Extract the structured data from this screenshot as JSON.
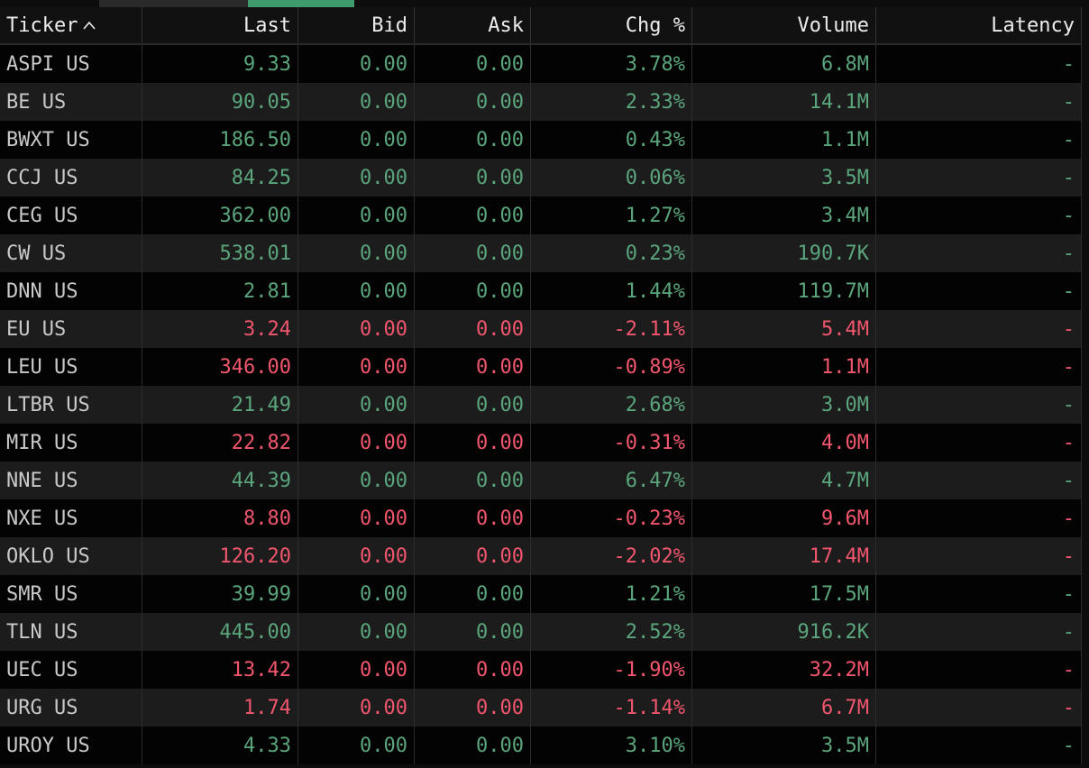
{
  "table": {
    "headers": [
      "Ticker",
      "Last",
      "Bid",
      "Ask",
      "Chg %",
      "Volume",
      "Latency"
    ],
    "colors": {
      "up": "#5ba57d",
      "down": "#f0566d",
      "ticker": "#c9c9c9",
      "header": "#ededed"
    },
    "rows": [
      [
        "ASPI US",
        "9.33",
        "0.00",
        "0.00",
        "3.78%",
        "6.8M",
        "-"
      ],
      [
        "BE US",
        "90.05",
        "0.00",
        "0.00",
        "2.33%",
        "14.1M",
        "-"
      ],
      [
        "BWXT US",
        "186.50",
        "0.00",
        "0.00",
        "0.43%",
        "1.1M",
        "-"
      ],
      [
        "CCJ US",
        "84.25",
        "0.00",
        "0.00",
        "0.06%",
        "3.5M",
        "-"
      ],
      [
        "CEG US",
        "362.00",
        "0.00",
        "0.00",
        "1.27%",
        "3.4M",
        "-"
      ],
      [
        "CW US",
        "538.01",
        "0.00",
        "0.00",
        "0.23%",
        "190.7K",
        "-"
      ],
      [
        "DNN US",
        "2.81",
        "0.00",
        "0.00",
        "1.44%",
        "119.7M",
        "-"
      ],
      [
        "EU US",
        "3.24",
        "0.00",
        "0.00",
        "-2.11%",
        "5.4M",
        "-"
      ],
      [
        "LEU US",
        "346.00",
        "0.00",
        "0.00",
        "-0.89%",
        "1.1M",
        "-"
      ],
      [
        "LTBR US",
        "21.49",
        "0.00",
        "0.00",
        "2.68%",
        "3.0M",
        "-"
      ],
      [
        "MIR US",
        "22.82",
        "0.00",
        "0.00",
        "-0.31%",
        "4.0M",
        "-"
      ],
      [
        "NNE US",
        "44.39",
        "0.00",
        "0.00",
        "6.47%",
        "4.7M",
        "-"
      ],
      [
        "NXE US",
        "8.80",
        "0.00",
        "0.00",
        "-0.23%",
        "9.6M",
        "-"
      ],
      [
        "OKLO US",
        "126.20",
        "0.00",
        "0.00",
        "-2.02%",
        "17.4M",
        "-"
      ],
      [
        "SMR US",
        "39.99",
        "0.00",
        "0.00",
        "1.21%",
        "17.5M",
        "-"
      ],
      [
        "TLN US",
        "445.00",
        "0.00",
        "0.00",
        "2.52%",
        "916.2K",
        "-"
      ],
      [
        "UEC US",
        "13.42",
        "0.00",
        "0.00",
        "-1.90%",
        "32.2M",
        "-"
      ],
      [
        "URG US",
        "1.74",
        "0.00",
        "0.00",
        "-1.14%",
        "6.7M",
        "-"
      ],
      [
        "UROY US",
        "4.33",
        "0.00",
        "0.00",
        "3.10%",
        "3.5M",
        "-"
      ]
    ]
  }
}
